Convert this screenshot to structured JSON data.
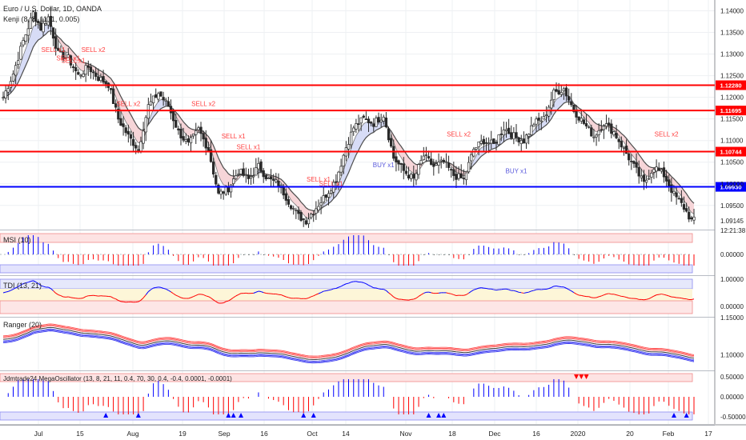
{
  "header": {
    "title": "Euro / U.S. Dollar, 1D, OANDA",
    "indicator": "Kenji (8, 8, 11, 1, 0.005)"
  },
  "colors": {
    "up": "#2a2a2a",
    "down": "#2a2a2a",
    "red": "#ff0000",
    "blue": "#0000ff",
    "sell_text": "#ff4040",
    "buy_text": "#5a5adc",
    "cloud_pink": "#f6d5d8",
    "cloud_blue": "#d7dcf6"
  },
  "chart_data": [
    {
      "type": "candlestick",
      "title": "Euro / U.S. Dollar, 1D, OANDA",
      "x_ticks": [
        "Jul",
        "15",
        "Aug",
        "19",
        "Sep",
        "16",
        "Oct",
        "14",
        "Nov",
        "18",
        "Dec",
        "16",
        "2020",
        "20",
        "Feb",
        "17"
      ],
      "y_ticks": [
        "1.14000",
        "1.13500",
        "1.13000",
        "1.12500",
        "1.12000",
        "1.11500",
        "1.11000",
        "1.10500",
        "1.10000",
        "1.09500"
      ],
      "ylim": [
        1.0896,
        1.1425
      ],
      "horizontal_levels": [
        {
          "value": 1.1228,
          "label": "1.12280",
          "color": "red"
        },
        {
          "value": 1.11695,
          "label": "1.11695",
          "color": "red"
        },
        {
          "value": 1.10744,
          "label": "1.10744",
          "color": "red"
        },
        {
          "value": 1.0993,
          "label": "1.09930",
          "color": "blue"
        }
      ],
      "last_price": "1.09145",
      "countdown": "12:21:38",
      "close_path": [
        [
          0,
          1.12
        ],
        [
          4,
          1.1255
        ],
        [
          8,
          1.133
        ],
        [
          12,
          1.1395
        ],
        [
          15,
          1.136
        ],
        [
          18,
          1.1385
        ],
        [
          22,
          1.13
        ],
        [
          26,
          1.129
        ],
        [
          30,
          1.125
        ],
        [
          34,
          1.127
        ],
        [
          38,
          1.1245
        ],
        [
          42,
          1.123
        ],
        [
          46,
          1.115
        ],
        [
          50,
          1.111
        ],
        [
          54,
          1.108
        ],
        [
          58,
          1.118
        ],
        [
          62,
          1.121
        ],
        [
          66,
          1.118
        ],
        [
          70,
          1.112
        ],
        [
          74,
          1.109
        ],
        [
          78,
          1.1125
        ],
        [
          82,
          1.108
        ],
        [
          86,
          1.0975
        ],
        [
          90,
          1.099
        ],
        [
          94,
          1.103
        ],
        [
          98,
          1.101
        ],
        [
          102,
          1.104
        ],
        [
          106,
          1.101
        ],
        [
          110,
          1.1
        ],
        [
          114,
          1.096
        ],
        [
          118,
          1.0925
        ],
        [
          121,
          1.0915
        ],
        [
          125,
          1.0945
        ],
        [
          129,
          1.0975
        ],
        [
          133,
          1.101
        ],
        [
          137,
          1.1085
        ],
        [
          140,
          1.113
        ],
        [
          144,
          1.115
        ],
        [
          148,
          1.114
        ],
        [
          152,
          1.116
        ],
        [
          156,
          1.106
        ],
        [
          160,
          1.103
        ],
        [
          164,
          1.101
        ],
        [
          168,
          1.1065
        ],
        [
          172,
          1.104
        ],
        [
          176,
          1.105
        ],
        [
          180,
          1.102
        ],
        [
          184,
          1.101
        ],
        [
          188,
          1.108
        ],
        [
          192,
          1.11
        ],
        [
          196,
          1.109
        ],
        [
          200,
          1.113
        ],
        [
          204,
          1.111
        ],
        [
          208,
          1.11
        ],
        [
          212,
          1.114
        ],
        [
          216,
          1.115
        ],
        [
          220,
          1.121
        ],
        [
          224,
          1.122
        ],
        [
          228,
          1.117
        ],
        [
          232,
          1.114
        ],
        [
          236,
          1.111
        ],
        [
          240,
          1.114
        ],
        [
          244,
          1.112
        ],
        [
          248,
          1.108
        ],
        [
          252,
          1.104
        ],
        [
          256,
          1.1
        ],
        [
          260,
          1.104
        ],
        [
          264,
          1.102
        ],
        [
          268,
          1.0975
        ],
        [
          272,
          1.0945
        ],
        [
          275,
          1.0915
        ]
      ],
      "annotations": [
        {
          "text": "SELL x1",
          "x": 20,
          "price": 1.1305,
          "kind": "sell"
        },
        {
          "text": "SELL x1",
          "x": 26,
          "price": 1.1285,
          "kind": "sell"
        },
        {
          "text": "SELL x2",
          "x": 36,
          "price": 1.1305,
          "kind": "sell"
        },
        {
          "text": "SELL x1",
          "x": 28,
          "price": 1.128,
          "kind": "sell"
        },
        {
          "text": "SELL x2",
          "x": 50,
          "price": 1.118,
          "kind": "sell"
        },
        {
          "text": "SELL x2",
          "x": 80,
          "price": 1.118,
          "kind": "sell"
        },
        {
          "text": "SELL x1",
          "x": 92,
          "price": 1.1105,
          "kind": "sell"
        },
        {
          "text": "SELL x1",
          "x": 98,
          "price": 1.108,
          "kind": "sell"
        },
        {
          "text": "SELL x1",
          "x": 126,
          "price": 1.1005,
          "kind": "sell"
        },
        {
          "text": "SELL x1",
          "x": 131,
          "price": 1.0995,
          "kind": "sell"
        },
        {
          "text": "SELL x2",
          "x": 182,
          "price": 1.111,
          "kind": "sell"
        },
        {
          "text": "SELL x2",
          "x": 265,
          "price": 1.111,
          "kind": "sell"
        },
        {
          "text": "BUY x1",
          "x": 152,
          "price": 1.1038,
          "kind": "buy"
        },
        {
          "text": "BUY x1",
          "x": 205,
          "price": 1.1025,
          "kind": "buy"
        }
      ]
    },
    {
      "type": "bar",
      "title": "MSI (10)",
      "y_ticks": [
        "0.00000"
      ]
    },
    {
      "type": "line",
      "title": "TDI (13, 21)",
      "y_ticks": [
        "1.00000",
        "0.00000"
      ]
    },
    {
      "type": "line",
      "title": "Ranger (20)",
      "y_ticks": [
        "1.15000",
        "1.10000"
      ]
    },
    {
      "type": "bar",
      "title": "Jdmtrade24 MegaOscillator (13, 8, 21, 11, 0.4, 70, 30, 0.4, -0.4, 0.0001, -0.0001)",
      "y_ticks": [
        "0.50000",
        "0.00000",
        "-0.50000"
      ]
    }
  ]
}
